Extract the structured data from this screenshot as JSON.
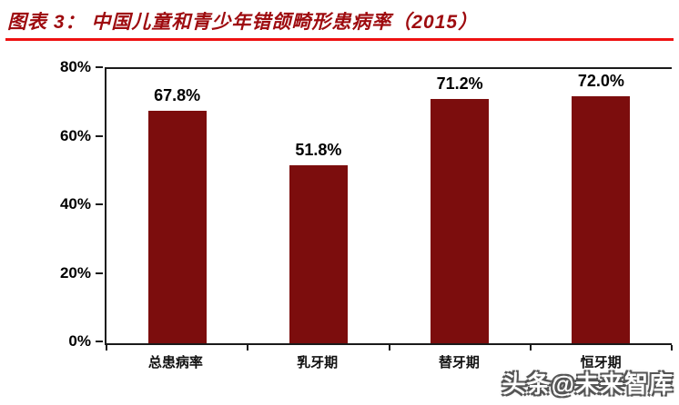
{
  "header": {
    "title": "图表 3：  中国儿童和青少年错颌畸形患病率（2015）"
  },
  "colors": {
    "title": "#9e0b0f",
    "underline": "#ee1111",
    "axis": "#1a1a1a"
  },
  "chart_data": {
    "type": "bar",
    "title": "中国儿童和青少年错颌畸形患病率（2015）",
    "categories": [
      "总患病率",
      "乳牙期",
      "替牙期",
      "恒牙期"
    ],
    "values": [
      67.8,
      51.8,
      71.2,
      72.0
    ],
    "data_labels": [
      "67.8%",
      "51.8%",
      "71.2%",
      "72.0%"
    ],
    "ylim": [
      0,
      80
    ],
    "ytick_labels": [
      "80%",
      "60%",
      "40%",
      "20%",
      "0%"
    ],
    "bar_color": "#7c0d0d",
    "grid": false,
    "legend": false
  },
  "watermark": {
    "text": "头条@未来智库"
  }
}
